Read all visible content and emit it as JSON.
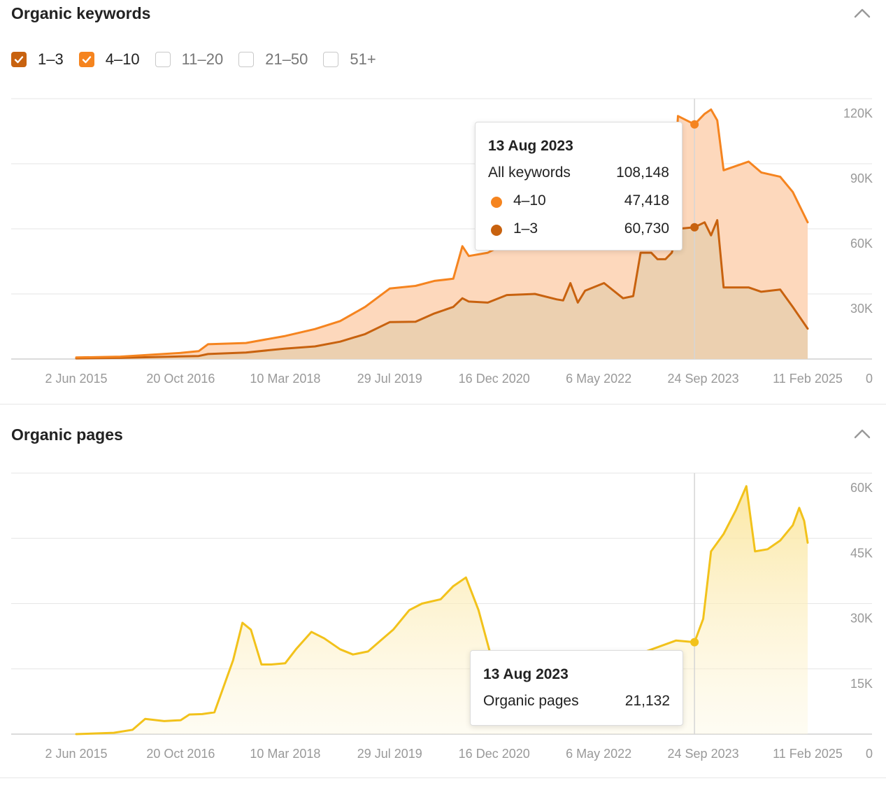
{
  "keywords_panel": {
    "title": "Organic keywords",
    "filters": [
      {
        "label": "1–3",
        "checked": true,
        "color": "#c8620f"
      },
      {
        "label": "4–10",
        "checked": true,
        "color": "#f5841f"
      },
      {
        "label": "11–20",
        "checked": false,
        "color": "#cccccc"
      },
      {
        "label": "21–50",
        "checked": false,
        "color": "#cccccc"
      },
      {
        "label": "51+",
        "checked": false,
        "color": "#cccccc"
      }
    ],
    "tooltip": {
      "date": "13 Aug 2023",
      "total_label": "All keywords",
      "total_value": "108,148",
      "rows": [
        {
          "label": "4–10",
          "value": "47,418",
          "color": "#f5841f"
        },
        {
          "label": "1–3",
          "value": "60,730",
          "color": "#c8620f"
        }
      ]
    }
  },
  "pages_panel": {
    "title": "Organic pages",
    "tooltip": {
      "date": "13 Aug 2023",
      "rows": [
        {
          "label": "Organic pages",
          "value": "21,132"
        }
      ]
    }
  },
  "chart_data": [
    {
      "type": "area",
      "stacked": true,
      "title": "Organic keywords",
      "x_axis_type": "date",
      "x_ticks": [
        "2 Jun 2015",
        "20 Oct 2016",
        "10 Mar 2018",
        "29 Jul 2019",
        "16 Dec 2020",
        "6 May 2022",
        "24 Sep 2023",
        "11 Feb 2025"
      ],
      "y_ticks": [
        "0",
        "30K",
        "60K",
        "90K",
        "120K"
      ],
      "ylim": [
        0,
        120000
      ],
      "grid": true,
      "series": [
        {
          "name": "1–3",
          "color": "#c8620f",
          "fill": "#ecd0b0",
          "points": [
            [
              "2015-06-02",
              300
            ],
            [
              "2016-01-01",
              500
            ],
            [
              "2016-10-20",
              1200
            ],
            [
              "2017-01-15",
              1400
            ],
            [
              "2017-03-01",
              2300
            ],
            [
              "2017-09-01",
              3000
            ],
            [
              "2018-03-10",
              4800
            ],
            [
              "2018-08-01",
              5800
            ],
            [
              "2018-12-01",
              8000
            ],
            [
              "2019-04-01",
              11500
            ],
            [
              "2019-07-29",
              17000
            ],
            [
              "2019-12-01",
              17200
            ],
            [
              "2020-03-01",
              21000
            ],
            [
              "2020-06-01",
              24000
            ],
            [
              "2020-07-15",
              28000
            ],
            [
              "2020-08-15",
              26500
            ],
            [
              "2020-11-15",
              26000
            ],
            [
              "2021-02-15",
              29500
            ],
            [
              "2021-07-01",
              30000
            ],
            [
              "2021-10-15",
              27500
            ],
            [
              "2021-11-15",
              27000
            ],
            [
              "2021-12-20",
              35000
            ],
            [
              "2022-01-25",
              26000
            ],
            [
              "2022-03-01",
              31500
            ],
            [
              "2022-06-01",
              35000
            ],
            [
              "2022-09-01",
              28000
            ],
            [
              "2022-10-20",
              29000
            ],
            [
              "2022-11-25",
              49000
            ],
            [
              "2023-01-15",
              49000
            ],
            [
              "2023-02-15",
              46000
            ],
            [
              "2023-03-25",
              46000
            ],
            [
              "2023-04-25",
              49000
            ],
            [
              "2023-05-25",
              60000
            ],
            [
              "2023-08-13",
              60730
            ],
            [
              "2023-10-01",
              63000
            ],
            [
              "2023-11-01",
              57000
            ],
            [
              "2023-12-01",
              64000
            ],
            [
              "2024-01-01",
              33000
            ],
            [
              "2024-05-01",
              33000
            ],
            [
              "2024-07-01",
              31000
            ],
            [
              "2024-10-01",
              32000
            ],
            [
              "2024-12-01",
              24000
            ],
            [
              "2025-02-11",
              14000
            ]
          ]
        },
        {
          "name": "4–10",
          "color": "#f5841f",
          "fill": "#fdd8bc",
          "points": [
            [
              "2015-06-02",
              400
            ],
            [
              "2016-01-01",
              600
            ],
            [
              "2016-10-20",
              1600
            ],
            [
              "2017-01-15",
              2200
            ],
            [
              "2017-03-01",
              4500
            ],
            [
              "2017-09-01",
              4400
            ],
            [
              "2018-03-10",
              5800
            ],
            [
              "2018-08-01",
              8000
            ],
            [
              "2018-12-01",
              9500
            ],
            [
              "2019-04-01",
              12500
            ],
            [
              "2019-07-29",
              15500
            ],
            [
              "2019-12-01",
              16500
            ],
            [
              "2020-03-01",
              15000
            ],
            [
              "2020-06-01",
              13000
            ],
            [
              "2020-07-15",
              24000
            ],
            [
              "2020-08-15",
              21000
            ],
            [
              "2020-11-15",
              23000
            ],
            [
              "2021-02-15",
              24000
            ],
            [
              "2021-07-01",
              24500
            ],
            [
              "2021-10-15",
              23500
            ],
            [
              "2021-11-15",
              29000
            ],
            [
              "2021-12-20",
              24000
            ],
            [
              "2022-01-25",
              31000
            ],
            [
              "2022-03-01",
              25500
            ],
            [
              "2022-06-01",
              24000
            ],
            [
              "2022-09-01",
              29000
            ],
            [
              "2022-10-20",
              26000
            ],
            [
              "2022-11-25",
              14000
            ],
            [
              "2023-01-15",
              14000
            ],
            [
              "2023-02-15",
              15000
            ],
            [
              "2023-03-25",
              16000
            ],
            [
              "2023-04-25",
              16000
            ],
            [
              "2023-05-25",
              52000
            ],
            [
              "2023-08-13",
              47418
            ],
            [
              "2023-10-01",
              50000
            ],
            [
              "2023-11-01",
              58000
            ],
            [
              "2023-12-01",
              46000
            ],
            [
              "2024-01-01",
              54000
            ],
            [
              "2024-05-01",
              58000
            ],
            [
              "2024-07-01",
              55000
            ],
            [
              "2024-10-01",
              52000
            ],
            [
              "2024-12-01",
              53000
            ],
            [
              "2025-02-11",
              49000
            ]
          ]
        }
      ]
    },
    {
      "type": "area",
      "title": "Organic pages",
      "x_axis_type": "date",
      "x_ticks": [
        "2 Jun 2015",
        "20 Oct 2016",
        "10 Mar 2018",
        "29 Jul 2019",
        "16 Dec 2020",
        "6 May 2022",
        "24 Sep 2023",
        "11 Feb 2025"
      ],
      "y_ticks": [
        "0",
        "15K",
        "30K",
        "45K",
        "60K"
      ],
      "ylim": [
        0,
        60000
      ],
      "grid": true,
      "series": [
        {
          "name": "Organic pages",
          "color": "#f2c21b",
          "fill": "#fdf0c2",
          "points": [
            [
              "2015-06-02",
              0
            ],
            [
              "2015-12-01",
              300
            ],
            [
              "2016-03-01",
              1000
            ],
            [
              "2016-05-01",
              3500
            ],
            [
              "2016-08-01",
              3000
            ],
            [
              "2016-10-20",
              3200
            ],
            [
              "2016-12-01",
              4500
            ],
            [
              "2017-02-01",
              4600
            ],
            [
              "2017-04-01",
              5000
            ],
            [
              "2017-07-01",
              17000
            ],
            [
              "2017-08-15",
              25600
            ],
            [
              "2017-09-25",
              24000
            ],
            [
              "2017-11-15",
              16000
            ],
            [
              "2018-01-01",
              16000
            ],
            [
              "2018-03-10",
              16300
            ],
            [
              "2018-05-01",
              19500
            ],
            [
              "2018-07-15",
              23500
            ],
            [
              "2018-09-15",
              22000
            ],
            [
              "2018-12-01",
              19500
            ],
            [
              "2019-02-01",
              18300
            ],
            [
              "2019-04-15",
              19000
            ],
            [
              "2019-06-15",
              21500
            ],
            [
              "2019-08-15",
              24000
            ],
            [
              "2019-11-01",
              28500
            ],
            [
              "2020-01-01",
              30000
            ],
            [
              "2020-04-01",
              31000
            ],
            [
              "2020-06-01",
              34000
            ],
            [
              "2020-08-01",
              36000
            ],
            [
              "2020-10-01",
              28500
            ],
            [
              "2020-12-20",
              14500
            ],
            [
              "2021-04-01",
              15000
            ],
            [
              "2022-06-01",
              15500
            ],
            [
              "2023-05-15",
              21500
            ],
            [
              "2023-08-13",
              21132
            ],
            [
              "2023-09-24",
              26500
            ],
            [
              "2023-11-01",
              42000
            ],
            [
              "2024-01-01",
              46000
            ],
            [
              "2024-03-01",
              51500
            ],
            [
              "2024-04-20",
              57000
            ],
            [
              "2024-06-01",
              42000
            ],
            [
              "2024-08-01",
              42500
            ],
            [
              "2024-10-01",
              44500
            ],
            [
              "2024-12-01",
              48000
            ],
            [
              "2025-01-01",
              52000
            ],
            [
              "2025-01-25",
              49000
            ],
            [
              "2025-02-11",
              44000
            ]
          ]
        }
      ]
    }
  ]
}
